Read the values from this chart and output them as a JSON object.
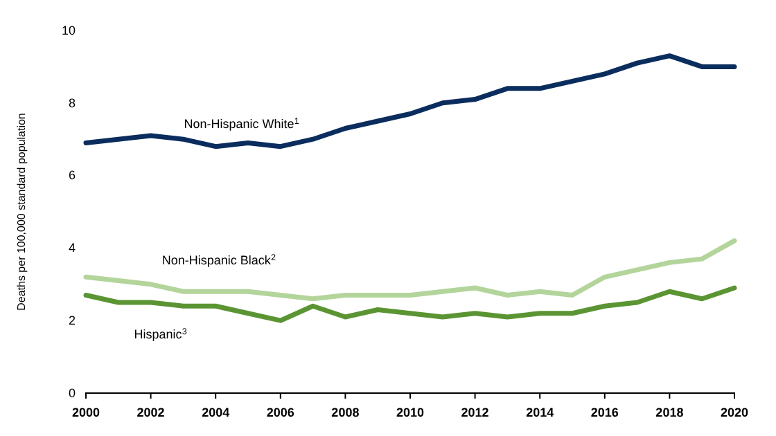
{
  "chart_data": {
    "type": "line",
    "ylabel": "Deaths per 100,000 standard population",
    "x": [
      2000,
      2001,
      2002,
      2003,
      2004,
      2005,
      2006,
      2007,
      2008,
      2009,
      2010,
      2011,
      2012,
      2013,
      2014,
      2015,
      2016,
      2017,
      2018,
      2019,
      2020
    ],
    "xlim": [
      2000,
      2020
    ],
    "xticks": [
      2000,
      2002,
      2004,
      2006,
      2008,
      2010,
      2012,
      2014,
      2016,
      2018,
      2020
    ],
    "ylim": [
      0,
      10
    ],
    "yticks": [
      0,
      2,
      4,
      6,
      8,
      10
    ],
    "grid": false,
    "legend": false,
    "marker": "none",
    "line_style": "solid",
    "series": [
      {
        "name": "Non-Hispanic White$^{1}$",
        "color": "#0b2d5e",
        "values": [
          6.9,
          7.0,
          7.1,
          7.0,
          6.8,
          6.9,
          6.8,
          7.0,
          7.3,
          7.5,
          7.7,
          8.0,
          8.1,
          8.4,
          8.4,
          8.6,
          8.8,
          9.1,
          9.3,
          9.0,
          9.0
        ]
      },
      {
        "name": "Non-Hispanic Black$^{2}$",
        "color": "#b3d59b",
        "values": [
          3.2,
          3.1,
          3.0,
          2.8,
          2.8,
          2.8,
          2.7,
          2.6,
          2.7,
          2.7,
          2.7,
          2.8,
          2.9,
          2.7,
          2.8,
          2.7,
          3.2,
          3.4,
          3.6,
          3.7,
          4.2
        ]
      },
      {
        "name": "Hispanic$^{3}$",
        "color": "#5b9533",
        "values": [
          2.7,
          2.5,
          2.5,
          2.4,
          2.4,
          2.2,
          2.0,
          2.4,
          2.1,
          2.3,
          2.2,
          2.1,
          2.2,
          2.1,
          2.2,
          2.2,
          2.4,
          2.5,
          2.8,
          2.6,
          2.9
        ]
      }
    ]
  }
}
